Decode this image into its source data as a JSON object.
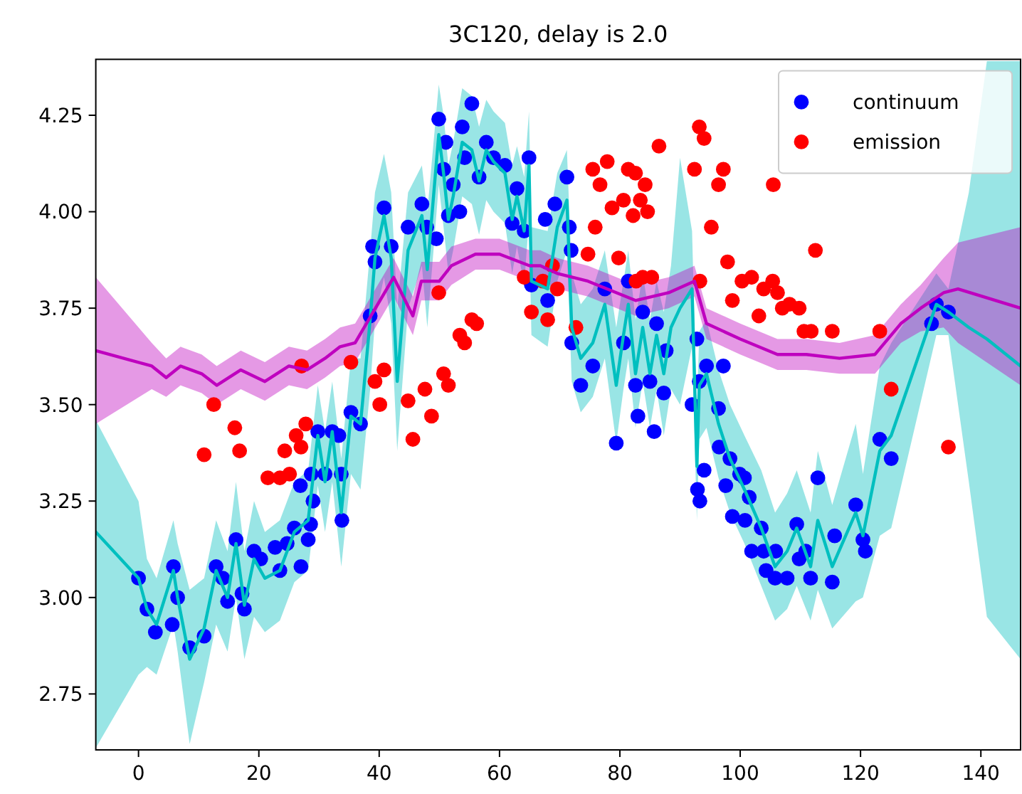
{
  "chart_data": {
    "type": "scatter",
    "title": "3C120, delay is 2.0",
    "xlim": [
      -7.1,
      146.6
    ],
    "ylim": [
      2.605,
      4.395
    ],
    "xticks": [
      0,
      20,
      40,
      60,
      80,
      100,
      120,
      140
    ],
    "yticks": [
      {
        "value": 2.75,
        "label": "2.75"
      },
      {
        "value": 3,
        "label": "3.00"
      },
      {
        "value": 3.25,
        "label": "3.25"
      },
      {
        "value": 3.5,
        "label": "3.50"
      },
      {
        "value": 3.75,
        "label": "3.75"
      },
      {
        "value": 4,
        "label": "4.00"
      },
      {
        "value": 4.25,
        "label": "4.25"
      }
    ],
    "grid": false,
    "legend": "top right",
    "series": [
      {
        "type": "line",
        "color": "#00bfbf",
        "line_style": "solid",
        "x": [
          -7.1,
          0,
          1.4,
          3,
          5.8,
          6.5,
          8.5,
          10.9,
          12.9,
          14.8,
          16.2,
          17.6,
          19.2,
          21,
          23.5,
          25.9,
          28.2,
          29.8,
          31,
          32.2,
          33.7,
          35.3,
          36.9,
          38.5,
          39.3,
          40.8,
          42,
          43,
          44.8,
          47.1,
          48,
          49.9,
          50.7,
          51.5,
          52.3,
          53.8,
          55.4,
          56.6,
          57.8,
          59,
          60.9,
          62.1,
          62.9,
          64.1,
          64.9,
          65.3,
          68,
          69.6,
          71.2,
          72,
          73.5,
          75.5,
          77.5,
          79.4,
          80.6,
          81.4,
          82.6,
          83.8,
          85,
          86.1,
          87.3,
          88.5,
          90,
          92,
          92.8,
          93.2,
          94.4,
          96.4,
          98.3,
          100.7,
          103.5,
          105.8,
          107.8,
          109.4,
          111.7,
          112.9,
          115.3,
          119.2,
          120.4,
          123.2,
          125.1,
          132.6,
          134.6,
          138,
          141,
          146.6
        ],
        "values": [
          3.17,
          3.05,
          2.97,
          2.93,
          3.07,
          3,
          2.84,
          2.92,
          3.07,
          3,
          3.14,
          2.98,
          3.1,
          3.05,
          3.07,
          3.17,
          3.2,
          3.42,
          3.3,
          3.43,
          3.22,
          3.47,
          3.45,
          3.72,
          3.88,
          3.99,
          3.88,
          3.56,
          3.9,
          3.99,
          3.85,
          4.2,
          4.1,
          3.98,
          4.04,
          4.18,
          4.16,
          4.08,
          4.16,
          4.13,
          4.1,
          3.98,
          4.04,
          3.95,
          4.12,
          3.82,
          3.8,
          3.96,
          4.03,
          3.7,
          3.62,
          3.66,
          3.76,
          3.55,
          3.68,
          3.76,
          3.58,
          3.7,
          3.58,
          3.68,
          3.58,
          3.7,
          3.75,
          3.8,
          3.34,
          3.55,
          3.58,
          3.45,
          3.36,
          3.28,
          3.18,
          3.08,
          3.12,
          3.18,
          3.08,
          3.2,
          3.08,
          3.22,
          3.16,
          3.38,
          3.42,
          3.76,
          3.74,
          3.7,
          3.67,
          3.6
        ],
        "upper": [
          3.46,
          3.25,
          3.1,
          3.05,
          3.2,
          3.14,
          3.02,
          3.05,
          3.2,
          3.12,
          3.3,
          3.12,
          3.25,
          3.17,
          3.2,
          3.3,
          3.33,
          3.55,
          3.43,
          3.56,
          3.36,
          3.62,
          3.62,
          3.9,
          4.05,
          4.15,
          4.05,
          3.75,
          4.05,
          4.12,
          4,
          4.33,
          4.25,
          4.12,
          4.18,
          4.32,
          4.3,
          4.22,
          4.29,
          4.26,
          4.23,
          4.12,
          4.17,
          4.09,
          4.26,
          3.96,
          3.95,
          4.1,
          4.16,
          3.84,
          3.76,
          3.8,
          3.9,
          3.7,
          3.82,
          3.9,
          3.72,
          3.84,
          3.72,
          3.82,
          3.74,
          3.86,
          4.14,
          3.95,
          3.48,
          3.69,
          3.72,
          3.59,
          3.5,
          3.42,
          3.33,
          3.22,
          3.27,
          3.33,
          3.22,
          3.38,
          3.24,
          3.45,
          3.32,
          3.6,
          3.66,
          3.84,
          3.8,
          4.05,
          4.39,
          4.39
        ],
        "lower": [
          2.61,
          2.8,
          2.82,
          2.8,
          2.93,
          2.86,
          2.62,
          2.78,
          2.93,
          2.86,
          3,
          2.84,
          2.95,
          2.91,
          2.94,
          3.04,
          3.07,
          3.29,
          3.17,
          3.3,
          3.08,
          3.32,
          3.28,
          3.54,
          3.72,
          3.83,
          3.71,
          3.38,
          3.75,
          3.86,
          3.7,
          4.07,
          3.96,
          3.84,
          3.9,
          4.04,
          4.02,
          3.94,
          4.03,
          4,
          3.97,
          3.84,
          3.91,
          3.81,
          3.98,
          3.68,
          3.65,
          3.82,
          3.9,
          3.56,
          3.48,
          3.52,
          3.62,
          3.4,
          3.54,
          3.62,
          3.44,
          3.56,
          3.44,
          3.54,
          3.42,
          3.54,
          3.5,
          3.65,
          3.2,
          3.41,
          3.44,
          3.31,
          3.22,
          3.14,
          3.03,
          2.94,
          2.97,
          3.03,
          2.94,
          3.02,
          2.92,
          2.99,
          3,
          3.16,
          3.18,
          3.68,
          3.68,
          3.3,
          2.95,
          2.84
        ]
      },
      {
        "type": "line",
        "color": "#bf00bf",
        "line_style": "solid",
        "x": [
          -7.1,
          2.2,
          4.6,
          7,
          10.5,
          13,
          17,
          21,
          25,
          28,
          31,
          33.5,
          36,
          39,
          42.4,
          45.6,
          47,
          50,
          52,
          56,
          60,
          65,
          66.8,
          69.6,
          74.7,
          82.6,
          88.1,
          92.4,
          94.4,
          100,
          106.2,
          111,
          116.5,
          122.4,
          126.7,
          130,
          133.8,
          136.2,
          146.6
        ],
        "values": [
          3.64,
          3.6,
          3.57,
          3.6,
          3.58,
          3.55,
          3.59,
          3.56,
          3.6,
          3.59,
          3.62,
          3.65,
          3.66,
          3.74,
          3.83,
          3.73,
          3.82,
          3.82,
          3.86,
          3.89,
          3.89,
          3.86,
          3.86,
          3.84,
          3.82,
          3.77,
          3.79,
          3.82,
          3.71,
          3.67,
          3.63,
          3.63,
          3.62,
          3.63,
          3.71,
          3.75,
          3.79,
          3.8,
          3.75
        ],
        "upper": [
          3.83,
          3.66,
          3.62,
          3.65,
          3.63,
          3.6,
          3.64,
          3.61,
          3.65,
          3.64,
          3.67,
          3.7,
          3.71,
          3.79,
          3.88,
          3.78,
          3.87,
          3.87,
          3.91,
          3.93,
          3.93,
          3.9,
          3.9,
          3.88,
          3.86,
          3.81,
          3.83,
          3.86,
          3.75,
          3.71,
          3.67,
          3.67,
          3.66,
          3.68,
          3.76,
          3.81,
          3.88,
          3.92,
          3.96
        ],
        "lower": [
          3.45,
          3.54,
          3.52,
          3.55,
          3.53,
          3.5,
          3.54,
          3.51,
          3.55,
          3.54,
          3.57,
          3.6,
          3.61,
          3.69,
          3.78,
          3.68,
          3.77,
          3.77,
          3.81,
          3.85,
          3.85,
          3.82,
          3.82,
          3.8,
          3.78,
          3.73,
          3.75,
          3.78,
          3.67,
          3.63,
          3.59,
          3.59,
          3.58,
          3.58,
          3.66,
          3.69,
          3.7,
          3.66,
          3.55
        ]
      },
      {
        "name": "continuum",
        "color": "#0000ff",
        "marker": "circle",
        "x": [
          0,
          1.4,
          2.8,
          5.8,
          6.5,
          5.6,
          8.5,
          10.9,
          12.9,
          14,
          14.8,
          16.2,
          17.2,
          17.6,
          19.2,
          20.3,
          22.7,
          23.5,
          24.7,
          25.9,
          27,
          28.2,
          28.6,
          26.9,
          29,
          28.7,
          29.8,
          31,
          32.2,
          33.3,
          33.7,
          33.8,
          35.3,
          36.9,
          38.5,
          38.9,
          39.3,
          40.8,
          42,
          44.8,
          47.1,
          47.9,
          49.5,
          49.9,
          50.7,
          51.1,
          51.5,
          52.3,
          53.4,
          53.8,
          54.2,
          55.4,
          56.6,
          57.8,
          59,
          60.9,
          62.1,
          62.9,
          64.1,
          64.9,
          65.3,
          68,
          67.6,
          69.2,
          71.2,
          71.6,
          71.9,
          72,
          73.5,
          75.5,
          77.5,
          79.4,
          80.6,
          81.4,
          82.6,
          83,
          83.8,
          85,
          85.7,
          86.1,
          87.3,
          87.7,
          92.8,
          92,
          93.2,
          94.4,
          94,
          92.9,
          93.3,
          96.4,
          97.2,
          96.5,
          98.3,
          97.6,
          99.9,
          100.7,
          98.7,
          100.8,
          101.5,
          101.9,
          103.5,
          103.9,
          104.3,
          105.8,
          107.8,
          105.9,
          109.4,
          109.8,
          110.9,
          111.7,
          112.9,
          115.3,
          115.7,
          119.2,
          120.4,
          120.8,
          123.2,
          125.1,
          131.8,
          132.6,
          134.6
        ],
        "values": [
          3.05,
          2.97,
          2.91,
          3.08,
          3,
          2.93,
          2.87,
          2.9,
          3.08,
          3.05,
          2.99,
          3.15,
          3.01,
          2.97,
          3.12,
          3.1,
          3.13,
          3.07,
          3.14,
          3.18,
          3.08,
          3.15,
          3.19,
          3.29,
          3.25,
          3.32,
          3.43,
          3.32,
          3.43,
          3.42,
          3.32,
          3.2,
          3.48,
          3.45,
          3.73,
          3.91,
          3.87,
          4.01,
          3.91,
          3.96,
          4.02,
          3.96,
          3.93,
          4.24,
          4.11,
          4.18,
          3.99,
          4.07,
          4,
          4.22,
          4.14,
          4.28,
          4.09,
          4.18,
          4.14,
          4.12,
          3.97,
          4.06,
          3.95,
          4.14,
          3.81,
          3.77,
          3.98,
          4.02,
          4.09,
          3.96,
          3.9,
          3.66,
          3.55,
          3.6,
          3.8,
          3.4,
          3.66,
          3.82,
          3.55,
          3.47,
          3.74,
          3.56,
          3.43,
          3.71,
          3.53,
          3.64,
          3.67,
          3.5,
          3.56,
          3.6,
          3.33,
          3.28,
          3.25,
          3.49,
          3.6,
          3.39,
          3.36,
          3.29,
          3.32,
          3.31,
          3.21,
          3.2,
          3.26,
          3.12,
          3.18,
          3.12,
          3.07,
          3.05,
          3.05,
          3.12,
          3.19,
          3.1,
          3.12,
          3.05,
          3.31,
          3.04,
          3.16,
          3.24,
          3.15,
          3.12,
          3.41,
          3.36,
          3.71,
          3.76,
          3.74
        ]
      },
      {
        "name": "emission",
        "color": "#ff0000",
        "marker": "circle",
        "x": [
          12.5,
          10.9,
          16,
          16.8,
          21.5,
          23.5,
          25.1,
          24.3,
          26.2,
          27,
          27.8,
          27.1,
          35.3,
          39.3,
          40.1,
          40.8,
          44.8,
          45.6,
          47.6,
          48.7,
          49.9,
          50.7,
          51.5,
          53.4,
          54.2,
          56.2,
          55.4,
          64.1,
          65.3,
          68,
          67.2,
          68.8,
          69.6,
          72.7,
          74.7,
          75.9,
          75.5,
          76.7,
          77.9,
          78.7,
          79.8,
          80.6,
          81.4,
          82.2,
          82.6,
          83.4,
          84.2,
          84.6,
          82.7,
          83.8,
          85.3,
          86.5,
          92.4,
          93.2,
          94,
          95.2,
          96.4,
          97.2,
          93.3,
          97.9,
          98.7,
          100.3,
          101.9,
          103.1,
          103.9,
          105.4,
          106.2,
          107,
          108.2,
          109.8,
          110.6,
          111.8,
          115.3,
          123.2,
          125.1,
          112.5,
          105.5,
          134.6
        ],
        "values": [
          3.5,
          3.37,
          3.44,
          3.38,
          3.31,
          3.31,
          3.32,
          3.38,
          3.42,
          3.39,
          3.45,
          3.6,
          3.61,
          3.56,
          3.5,
          3.59,
          3.51,
          3.41,
          3.54,
          3.47,
          3.79,
          3.58,
          3.55,
          3.68,
          3.66,
          3.71,
          3.72,
          3.83,
          3.74,
          3.72,
          3.82,
          3.86,
          3.8,
          3.7,
          3.89,
          3.96,
          4.11,
          4.07,
          4.13,
          4.01,
          3.88,
          4.03,
          4.11,
          3.99,
          4.1,
          4.03,
          4.07,
          4,
          3.82,
          3.83,
          3.83,
          4.17,
          4.11,
          4.22,
          4.19,
          3.96,
          4.07,
          4.11,
          3.82,
          3.87,
          3.77,
          3.82,
          3.83,
          3.73,
          3.8,
          3.82,
          3.79,
          3.75,
          3.76,
          3.75,
          3.69,
          3.69,
          3.69,
          3.69,
          3.54,
          3.9,
          4.07,
          3.39
        ]
      }
    ]
  }
}
